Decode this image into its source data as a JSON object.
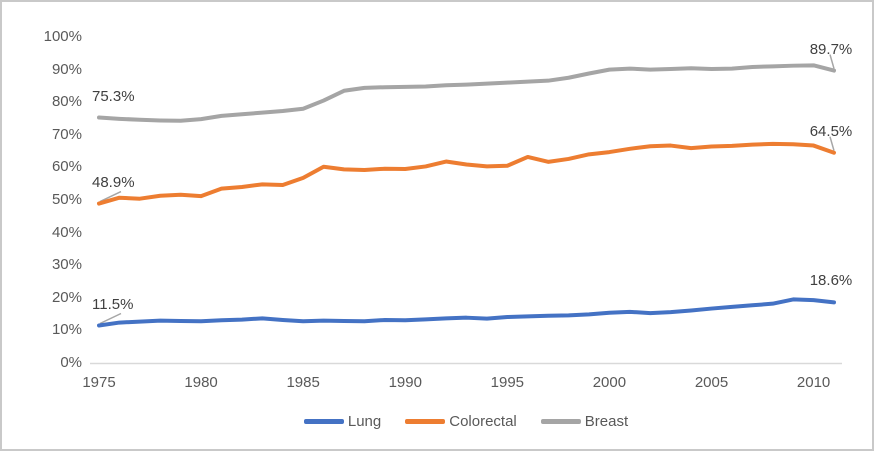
{
  "chart_data": {
    "type": "line",
    "title": "",
    "xlabel": "",
    "ylabel": "",
    "x": [
      1975,
      1976,
      1977,
      1978,
      1979,
      1980,
      1981,
      1982,
      1983,
      1984,
      1985,
      1986,
      1987,
      1988,
      1989,
      1990,
      1991,
      1992,
      1993,
      1994,
      1995,
      1996,
      1997,
      1998,
      1999,
      2000,
      2001,
      2002,
      2003,
      2004,
      2005,
      2006,
      2007,
      2008,
      2009,
      2010,
      2011
    ],
    "series": [
      {
        "name": "Lung",
        "color": "#4472C4",
        "values": [
          11.5,
          12.4,
          12.7,
          13.0,
          12.9,
          12.8,
          13.1,
          13.3,
          13.7,
          13.2,
          12.8,
          13.0,
          12.9,
          12.8,
          13.2,
          13.1,
          13.4,
          13.7,
          13.9,
          13.6,
          14.1,
          14.3,
          14.5,
          14.6,
          14.9,
          15.4,
          15.7,
          15.3,
          15.6,
          16.1,
          16.7,
          17.2,
          17.7,
          18.2,
          19.5,
          19.3,
          18.6
        ]
      },
      {
        "name": "Colorectal",
        "color": "#ED7D31",
        "values": [
          48.9,
          50.7,
          50.4,
          51.3,
          51.6,
          51.2,
          53.5,
          54.0,
          54.8,
          54.6,
          56.8,
          60.2,
          59.4,
          59.2,
          59.6,
          59.5,
          60.3,
          61.8,
          60.9,
          60.3,
          60.5,
          63.2,
          61.7,
          62.6,
          64.0,
          64.7,
          65.7,
          66.5,
          66.7,
          65.9,
          66.4,
          66.6,
          67.0,
          67.2,
          67.1,
          66.7,
          64.5
        ]
      },
      {
        "name": "Breast",
        "color": "#A5A5A5",
        "values": [
          75.3,
          74.9,
          74.6,
          74.4,
          74.3,
          74.8,
          75.8,
          76.3,
          76.8,
          77.3,
          78.0,
          80.5,
          83.5,
          84.4,
          84.6,
          84.7,
          84.8,
          85.2,
          85.4,
          85.7,
          86.0,
          86.3,
          86.6,
          87.5,
          88.8,
          90.0,
          90.3,
          90.0,
          90.2,
          90.4,
          90.2,
          90.3,
          90.8,
          91.0,
          91.2,
          91.3,
          89.7
        ]
      }
    ],
    "ylim": [
      0,
      100
    ],
    "y_tick_labels": [
      "100%",
      "90%",
      "80%",
      "70%",
      "60%",
      "50%",
      "40%",
      "30%",
      "20%",
      "10%",
      "0%"
    ],
    "x_tick_labels": [
      "1975",
      "1980",
      "1985",
      "1990",
      "1995",
      "2000",
      "2005",
      "2010"
    ],
    "grid": false,
    "legend_position": "bottom"
  },
  "annotations": [
    {
      "series": "Breast",
      "year": 1975,
      "text": "75.3%",
      "placement": "start",
      "leader": false
    },
    {
      "series": "Colorectal",
      "year": 1975,
      "text": "48.9%",
      "placement": "start",
      "leader": true
    },
    {
      "series": "Lung",
      "year": 1975,
      "text": "11.5%",
      "placement": "start",
      "leader": true
    },
    {
      "series": "Breast",
      "year": 2011,
      "text": "89.7%",
      "placement": "end",
      "leader": true
    },
    {
      "series": "Colorectal",
      "year": 2011,
      "text": "64.5%",
      "placement": "end",
      "leader": true
    },
    {
      "series": "Lung",
      "year": 2011,
      "text": "18.6%",
      "placement": "end",
      "leader": false
    }
  ],
  "legend": {
    "items": [
      "Lung",
      "Colorectal",
      "Breast"
    ]
  },
  "colors": {
    "lung": "#4472C4",
    "colorectal": "#ED7D31",
    "breast": "#A5A5A5",
    "axis_line": "#D9D9D9",
    "tick_text": "#595959",
    "label_text": "#404040",
    "leader_line": "#A6A6A6",
    "border": "#C9C9C9",
    "background": "#FFFFFF"
  }
}
